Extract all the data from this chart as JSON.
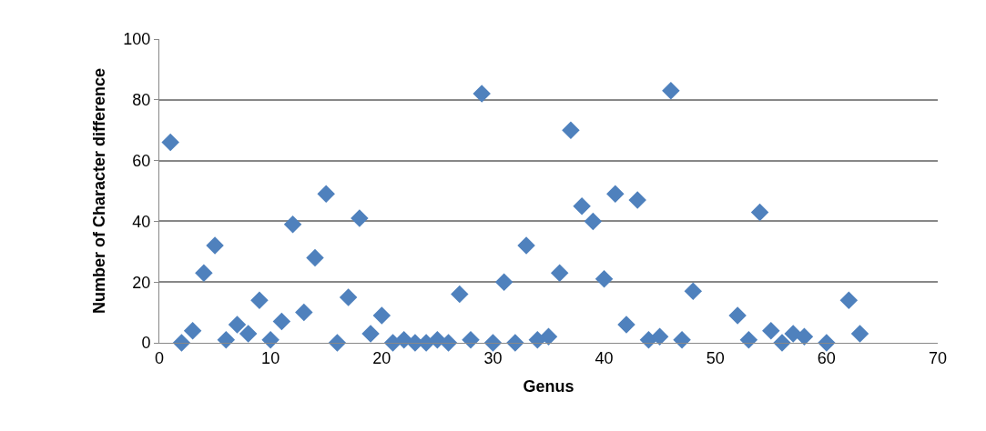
{
  "chart_data": {
    "type": "scatter",
    "xlabel": "Genus",
    "ylabel": "Number of Character difference",
    "x": [
      1,
      2,
      3,
      4,
      5,
      6,
      7,
      8,
      9,
      10,
      11,
      12,
      13,
      14,
      15,
      16,
      17,
      18,
      19,
      20,
      21,
      22,
      23,
      24,
      25,
      26,
      27,
      28,
      29,
      30,
      31,
      32,
      33,
      34,
      35,
      36,
      37,
      38,
      39,
      40,
      41,
      42,
      43,
      44,
      45,
      46,
      47,
      48,
      52,
      53,
      54,
      55,
      56,
      57,
      58,
      60,
      62,
      63
    ],
    "values": [
      66,
      0,
      4,
      23,
      32,
      1,
      6,
      3,
      14,
      1,
      7,
      39,
      10,
      28,
      49,
      0,
      15,
      41,
      3,
      9,
      0,
      1,
      0,
      0,
      1,
      0,
      16,
      1,
      82,
      0,
      20,
      0,
      32,
      1,
      2,
      23,
      70,
      45,
      40,
      21,
      49,
      6,
      47,
      1,
      2,
      83,
      1,
      17,
      9,
      1,
      43,
      4,
      0,
      3,
      2,
      0,
      14,
      3
    ],
    "color": "#4f81bd",
    "marker": "diamond",
    "grid": "y",
    "legend": false,
    "xlim": [
      0,
      70
    ],
    "xticks": [
      0,
      10,
      20,
      30,
      40,
      50,
      60,
      70
    ],
    "ylim": [
      0,
      100
    ],
    "yticks": [
      0,
      20,
      40,
      60,
      80,
      100
    ]
  }
}
